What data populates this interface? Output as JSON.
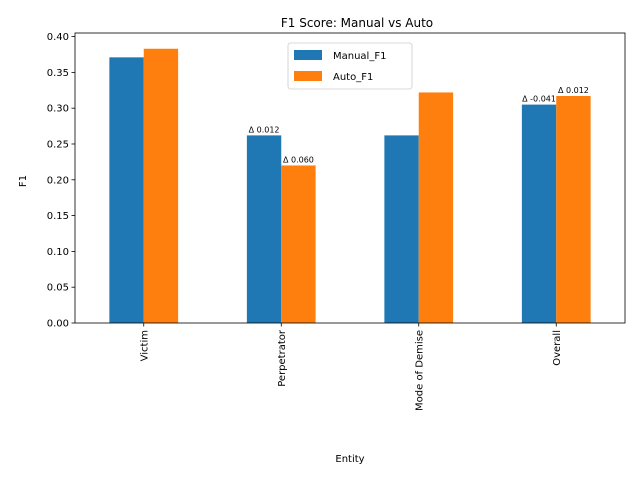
{
  "chart_data": {
    "type": "bar",
    "title": "F1 Score: Manual vs Auto",
    "xlabel": "Entity",
    "ylabel": "F1",
    "categories": [
      "Victim",
      "Perpetrator",
      "Mode of Demise",
      "Overall"
    ],
    "series": [
      {
        "name": "Manual_F1",
        "color": "#1f77b4",
        "values": [
          0.371,
          0.262,
          0.262,
          0.305
        ]
      },
      {
        "name": "Auto_F1",
        "color": "#ff7f0e",
        "values": [
          0.383,
          0.22,
          0.322,
          0.317
        ]
      }
    ],
    "ylim": [
      0,
      0.405
    ],
    "yticks": [
      "0.00",
      "0.05",
      "0.10",
      "0.15",
      "0.20",
      "0.25",
      "0.30",
      "0.35",
      "0.40"
    ],
    "ytick_values": [
      0,
      0.05,
      0.1,
      0.15,
      0.2,
      0.25,
      0.3,
      0.35,
      0.4
    ],
    "legend_position": "top-center",
    "grid": false,
    "annotations": [
      {
        "text": "Δ 0.012",
        "category": 1,
        "series": 0
      },
      {
        "text": "Δ 0.060",
        "category": 1,
        "series": 1
      },
      {
        "text": "Δ -0.041",
        "category": 3,
        "series": 0
      },
      {
        "text": "Δ 0.012",
        "category": 3,
        "series": 1
      }
    ]
  }
}
